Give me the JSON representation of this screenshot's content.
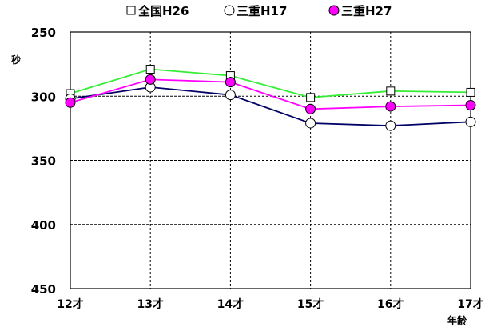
{
  "chart_data": {
    "type": "line",
    "title": "",
    "xlabel": "年齢",
    "ylabel": "秒",
    "categories": [
      "12才",
      "13才",
      "14才",
      "15才",
      "16才",
      "17才"
    ],
    "ylim": [
      250,
      450
    ],
    "y_reversed": true,
    "yticks": [
      250,
      300,
      350,
      400,
      450
    ],
    "grid": true,
    "legend_position": "top",
    "series": [
      {
        "name": "全国H26",
        "values": [
          298,
          279,
          284,
          301,
          296,
          297
        ],
        "line_color": "#33ee33",
        "marker": "square",
        "marker_fill": "#ffffff"
      },
      {
        "name": "三重H17",
        "values": [
          302,
          293,
          299,
          321,
          323,
          320
        ],
        "line_color": "#000066",
        "marker": "circle",
        "marker_fill": "#ffffff"
      },
      {
        "name": "三重H27",
        "values": [
          305,
          287,
          289,
          310,
          308,
          307
        ],
        "line_color": "#ff00ff",
        "marker": "circle",
        "marker_fill": "#ff00ff"
      }
    ]
  }
}
